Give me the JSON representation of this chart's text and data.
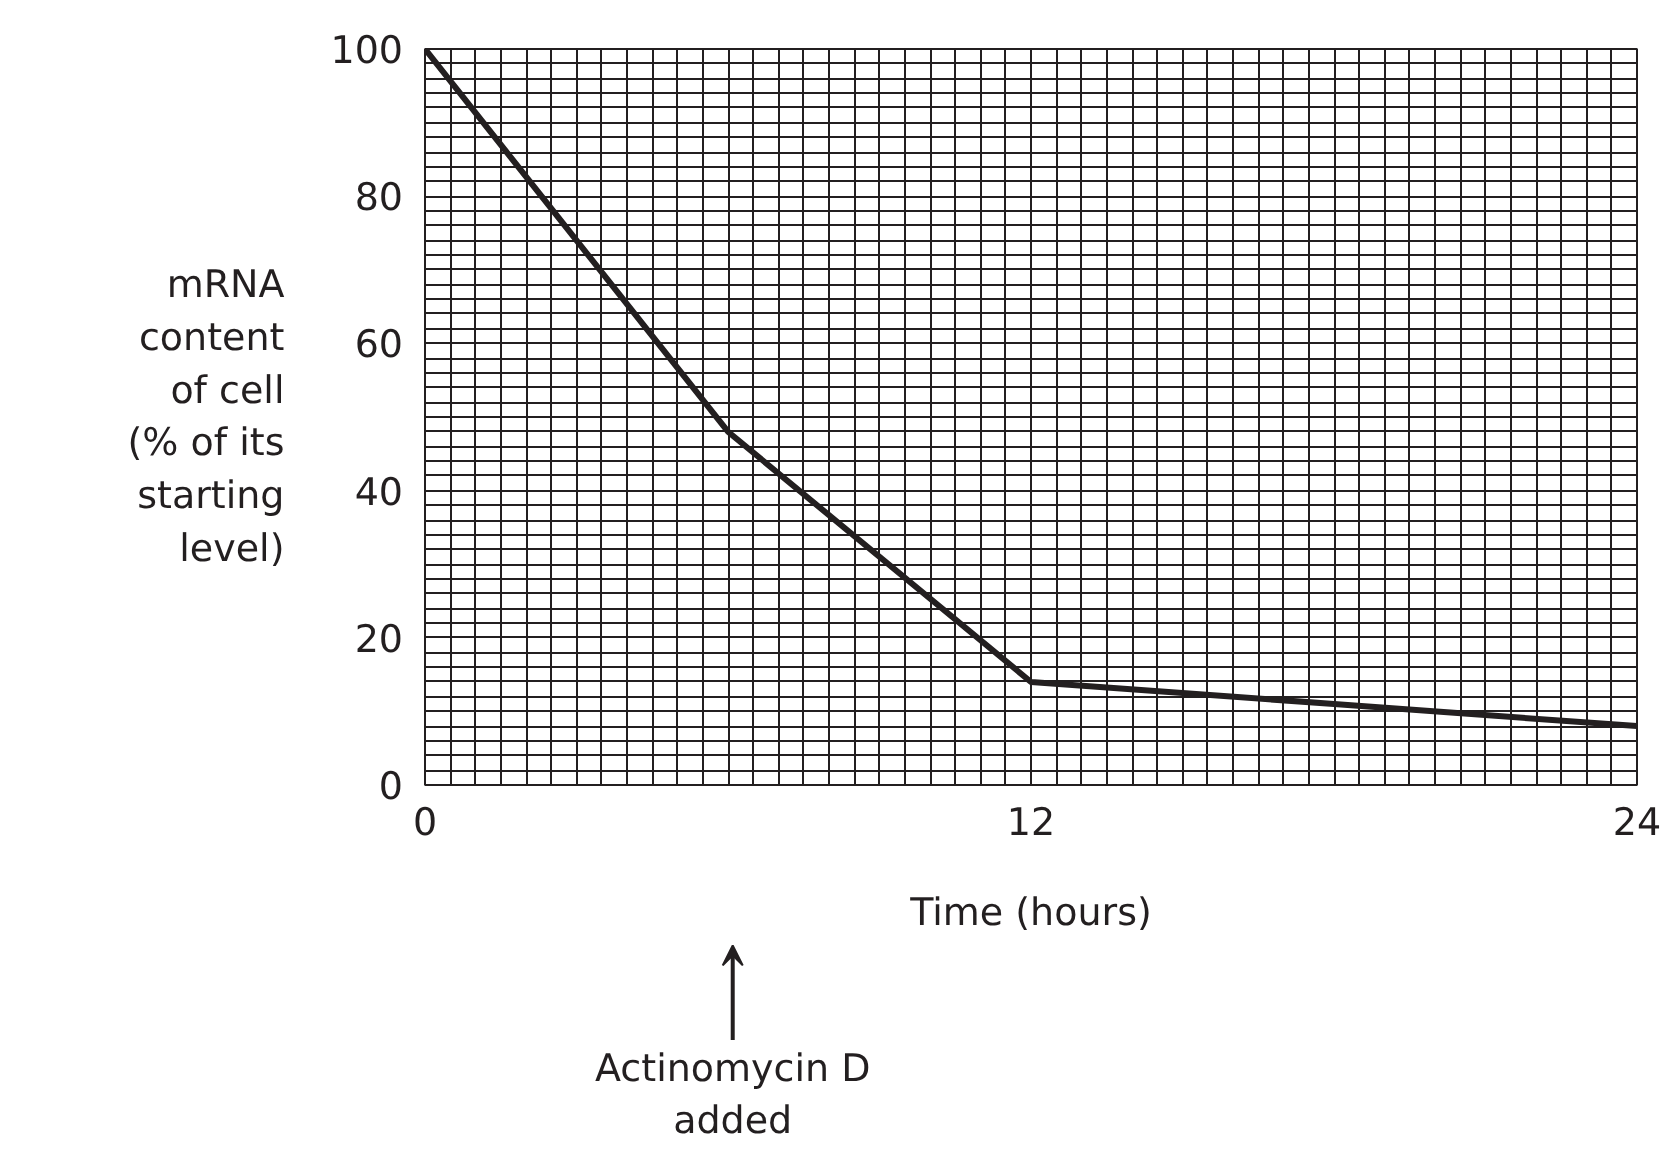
{
  "chart_data": {
    "type": "line",
    "xlabel": "Time (hours)",
    "ylabel": "mRNA\ncontent\nof cell\n(% of its\nstarting\nlevel)",
    "x": [
      0,
      6,
      12,
      18,
      24
    ],
    "series": [
      {
        "color": "#231f20",
        "values": [
          100,
          48,
          14,
          11,
          8
        ]
      }
    ],
    "xlim": [
      0,
      24
    ],
    "ylim": [
      0,
      100
    ],
    "xticks": [
      0,
      12,
      24
    ],
    "yticks": [
      0,
      20,
      40,
      60,
      80,
      100
    ],
    "grid": true,
    "annotations": [
      "Actinomycin D\nadded"
    ]
  }
}
